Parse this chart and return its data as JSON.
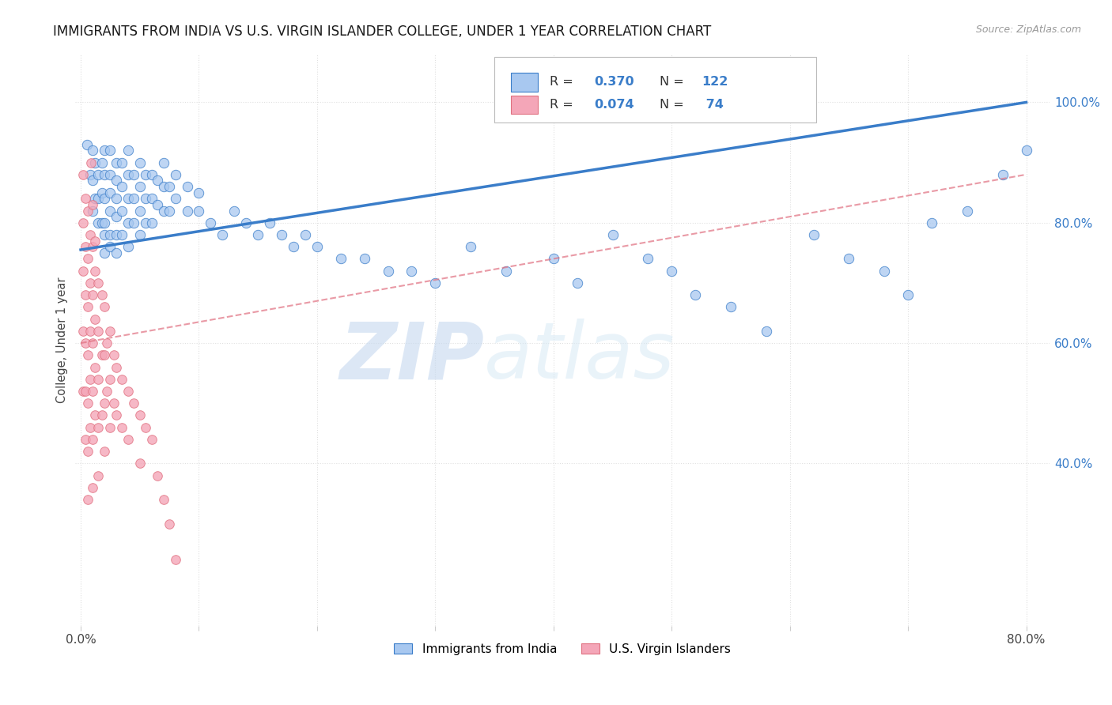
{
  "title": "IMMIGRANTS FROM INDIA VS U.S. VIRGIN ISLANDER COLLEGE, UNDER 1 YEAR CORRELATION CHART",
  "source": "Source: ZipAtlas.com",
  "ylabel": "College, Under 1 year",
  "x_ticks": [
    0.0,
    0.1,
    0.2,
    0.3,
    0.4,
    0.5,
    0.6,
    0.7,
    0.8
  ],
  "x_tick_labels": [
    "0.0%",
    "",
    "",
    "",
    "",
    "",
    "",
    "",
    "80.0%"
  ],
  "y_ticks_right": [
    0.4,
    0.6,
    0.8,
    1.0
  ],
  "y_tick_labels_right": [
    "40.0%",
    "60.0%",
    "80.0%",
    "100.0%"
  ],
  "xlim": [
    -0.005,
    0.82
  ],
  "ylim": [
    0.13,
    1.08
  ],
  "color_blue": "#a8c8f0",
  "color_pink": "#f4a6b8",
  "line_blue": "#3a7dc9",
  "line_pink": "#e07080",
  "watermark_zip": "ZIP",
  "watermark_atlas": "atlas",
  "background_color": "#ffffff",
  "grid_color": "#e0e0e0",
  "blue_line_x": [
    0.0,
    0.8
  ],
  "blue_line_y": [
    0.755,
    1.0
  ],
  "pink_line_x": [
    0.0,
    0.8
  ],
  "pink_line_y": [
    0.6,
    0.88
  ],
  "blue_scatter_x": [
    0.005,
    0.008,
    0.01,
    0.01,
    0.01,
    0.012,
    0.012,
    0.015,
    0.015,
    0.015,
    0.018,
    0.018,
    0.018,
    0.02,
    0.02,
    0.02,
    0.02,
    0.02,
    0.02,
    0.025,
    0.025,
    0.025,
    0.025,
    0.025,
    0.025,
    0.03,
    0.03,
    0.03,
    0.03,
    0.03,
    0.03,
    0.035,
    0.035,
    0.035,
    0.035,
    0.04,
    0.04,
    0.04,
    0.04,
    0.04,
    0.045,
    0.045,
    0.045,
    0.05,
    0.05,
    0.05,
    0.05,
    0.055,
    0.055,
    0.055,
    0.06,
    0.06,
    0.06,
    0.065,
    0.065,
    0.07,
    0.07,
    0.07,
    0.075,
    0.075,
    0.08,
    0.08,
    0.09,
    0.09,
    0.1,
    0.1,
    0.11,
    0.12,
    0.13,
    0.14,
    0.15,
    0.16,
    0.17,
    0.18,
    0.19,
    0.2,
    0.22,
    0.24,
    0.26,
    0.28,
    0.3,
    0.33,
    0.36,
    0.4,
    0.42,
    0.45,
    0.48,
    0.5,
    0.52,
    0.55,
    0.58,
    0.62,
    0.65,
    0.68,
    0.7,
    0.72,
    0.75,
    0.78,
    0.8
  ],
  "blue_scatter_y": [
    0.93,
    0.88,
    0.92,
    0.87,
    0.82,
    0.9,
    0.84,
    0.88,
    0.84,
    0.8,
    0.9,
    0.85,
    0.8,
    0.92,
    0.88,
    0.84,
    0.8,
    0.78,
    0.75,
    0.92,
    0.88,
    0.85,
    0.82,
    0.78,
    0.76,
    0.9,
    0.87,
    0.84,
    0.81,
    0.78,
    0.75,
    0.9,
    0.86,
    0.82,
    0.78,
    0.92,
    0.88,
    0.84,
    0.8,
    0.76,
    0.88,
    0.84,
    0.8,
    0.9,
    0.86,
    0.82,
    0.78,
    0.88,
    0.84,
    0.8,
    0.88,
    0.84,
    0.8,
    0.87,
    0.83,
    0.9,
    0.86,
    0.82,
    0.86,
    0.82,
    0.88,
    0.84,
    0.86,
    0.82,
    0.85,
    0.82,
    0.8,
    0.78,
    0.82,
    0.8,
    0.78,
    0.8,
    0.78,
    0.76,
    0.78,
    0.76,
    0.74,
    0.74,
    0.72,
    0.72,
    0.7,
    0.76,
    0.72,
    0.74,
    0.7,
    0.78,
    0.74,
    0.72,
    0.68,
    0.66,
    0.62,
    0.78,
    0.74,
    0.72,
    0.68,
    0.8,
    0.82,
    0.88,
    0.92
  ],
  "pink_scatter_x": [
    0.002,
    0.002,
    0.002,
    0.002,
    0.002,
    0.004,
    0.004,
    0.004,
    0.004,
    0.004,
    0.004,
    0.006,
    0.006,
    0.006,
    0.006,
    0.006,
    0.006,
    0.006,
    0.008,
    0.008,
    0.008,
    0.008,
    0.008,
    0.01,
    0.01,
    0.01,
    0.01,
    0.01,
    0.01,
    0.012,
    0.012,
    0.012,
    0.012,
    0.015,
    0.015,
    0.015,
    0.015,
    0.015,
    0.018,
    0.018,
    0.018,
    0.02,
    0.02,
    0.02,
    0.02,
    0.022,
    0.022,
    0.025,
    0.025,
    0.025,
    0.028,
    0.028,
    0.03,
    0.03,
    0.035,
    0.035,
    0.04,
    0.04,
    0.045,
    0.05,
    0.05,
    0.055,
    0.06,
    0.065,
    0.07,
    0.075,
    0.08,
    0.009,
    0.01,
    0.012
  ],
  "pink_scatter_y": [
    0.88,
    0.8,
    0.72,
    0.62,
    0.52,
    0.84,
    0.76,
    0.68,
    0.6,
    0.52,
    0.44,
    0.82,
    0.74,
    0.66,
    0.58,
    0.5,
    0.42,
    0.34,
    0.78,
    0.7,
    0.62,
    0.54,
    0.46,
    0.76,
    0.68,
    0.6,
    0.52,
    0.44,
    0.36,
    0.72,
    0.64,
    0.56,
    0.48,
    0.7,
    0.62,
    0.54,
    0.46,
    0.38,
    0.68,
    0.58,
    0.48,
    0.66,
    0.58,
    0.5,
    0.42,
    0.6,
    0.52,
    0.62,
    0.54,
    0.46,
    0.58,
    0.5,
    0.56,
    0.48,
    0.54,
    0.46,
    0.52,
    0.44,
    0.5,
    0.48,
    0.4,
    0.46,
    0.44,
    0.38,
    0.34,
    0.3,
    0.24,
    0.9,
    0.83,
    0.77
  ],
  "title_fontsize": 12,
  "legend_fontsize": 12
}
